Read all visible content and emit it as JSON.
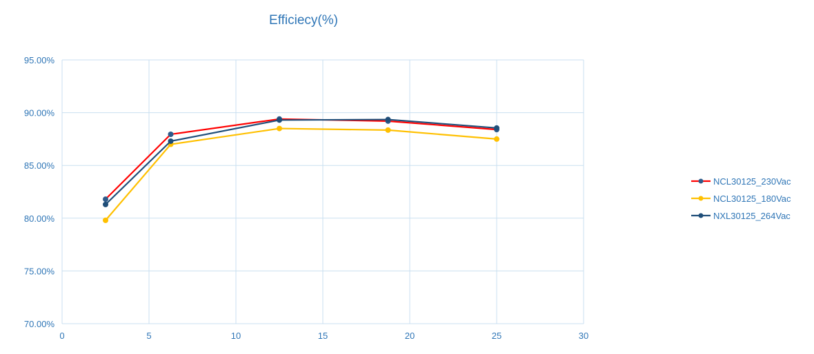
{
  "chart_data": {
    "type": "line",
    "title": "Efficiecy(%)",
    "xlabel": "",
    "ylabel": "",
    "xlim": [
      0,
      30
    ],
    "ylim": [
      70,
      95
    ],
    "xticks": [
      0,
      5,
      10,
      15,
      20,
      25,
      30
    ],
    "xtick_labels": [
      "0",
      "5",
      "10",
      "15",
      "20",
      "25",
      "30"
    ],
    "yticks": [
      70,
      75,
      80,
      85,
      90,
      95
    ],
    "ytick_labels": [
      "70.00%",
      "75.00%",
      "80.00%",
      "85.00%",
      "90.00%",
      "95.00%"
    ],
    "grid": true,
    "legend_position": "right",
    "x": [
      2.5,
      6.25,
      12.5,
      18.75,
      25
    ],
    "series": [
      {
        "name": "NCL30125_230Vac",
        "line_color": "#ff0000",
        "marker_color": "#2f5b8a",
        "values": [
          81.8,
          87.95,
          89.4,
          89.2,
          88.4
        ]
      },
      {
        "name": "NCL30125_180Vac",
        "line_color": "#ffc000",
        "marker_color": "#ffc000",
        "values": [
          79.8,
          87.0,
          88.5,
          88.35,
          87.5
        ]
      },
      {
        "name": "NXL30125_264Vac",
        "line_color": "#1f4e79",
        "marker_color": "#1f4e79",
        "values": [
          81.3,
          87.3,
          89.3,
          89.35,
          88.55
        ]
      }
    ]
  },
  "colors": {
    "text": "#2e75b6",
    "grid": "#c9dff0"
  }
}
